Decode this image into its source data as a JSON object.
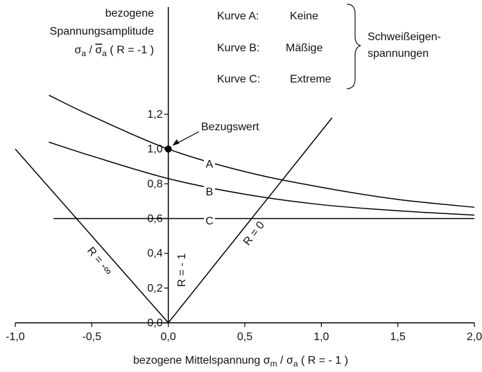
{
  "chart_data": {
    "type": "line",
    "ylabel": [
      "bezogene",
      "Spannungsamplitude"
    ],
    "ylabel_formula": [
      "σ",
      "a",
      " / ",
      "σ",
      "a",
      " ( R = -1 )"
    ],
    "xlabel_formula": [
      "bezogene Mittelspannung σ",
      "m",
      " / σ",
      "a",
      " ( R = - 1 )"
    ],
    "legend": [
      {
        "label": "Kurve A:",
        "text": "Keine"
      },
      {
        "label": "Kurve B:",
        "text": "Mäßige"
      },
      {
        "label": "Kurve C:",
        "text": "Extreme"
      }
    ],
    "brace_label": [
      "Schweißeigen-",
      "spannungen"
    ],
    "xlim": [
      -1.0,
      2.0
    ],
    "ylim": [
      0,
      1.2
    ],
    "xticks": [
      {
        "value": -1.0,
        "label": "-1,0"
      },
      {
        "value": -0.5,
        "label": "-0,5"
      },
      {
        "value": 0,
        "label": "0,0"
      },
      {
        "value": 0.5,
        "label": "0,5"
      },
      {
        "value": 1.0,
        "label": "1,0"
      },
      {
        "value": 1.5,
        "label": "1,5"
      },
      {
        "value": 2.0,
        "label": "2,0"
      }
    ],
    "yticks": [
      {
        "value": 0,
        "label": "0,0"
      },
      {
        "value": 0.2,
        "label": "0,2"
      },
      {
        "value": 0.4,
        "label": "0,4"
      },
      {
        "value": 0.6,
        "label": "0,6"
      },
      {
        "value": 0.8,
        "label": "0,8"
      },
      {
        "value": 1.0,
        "label": "1,0"
      },
      {
        "value": 1.2,
        "label": "1,2"
      }
    ],
    "color": "#000000",
    "series": [
      {
        "name": "A",
        "x": [
          -0.78,
          -0.5,
          0,
          0.5,
          1.0,
          1.5,
          2.0
        ],
        "values": [
          1.31,
          1.19,
          1.0,
          0.87,
          0.78,
          0.71,
          0.665
        ]
      },
      {
        "name": "B",
        "x": [
          -0.78,
          -0.5,
          0,
          0.5,
          1.0,
          1.5,
          2.0
        ],
        "values": [
          1.04,
          0.96,
          0.83,
          0.74,
          0.68,
          0.645,
          0.62
        ]
      },
      {
        "name": "C",
        "x": [
          -0.75,
          2.0
        ],
        "values": [
          0.6,
          0.6
        ]
      },
      {
        "name": "R = 0",
        "x": [
          0,
          1.07
        ],
        "values": [
          0,
          1.18
        ]
      },
      {
        "name": "R = -∞",
        "x": [
          -1.0,
          0
        ],
        "values": [
          1.0,
          0
        ]
      }
    ],
    "axis_line_label": "R = - 1",
    "annotation": {
      "text": "Bezugswert",
      "x": 0,
      "value": 1.0
    }
  }
}
